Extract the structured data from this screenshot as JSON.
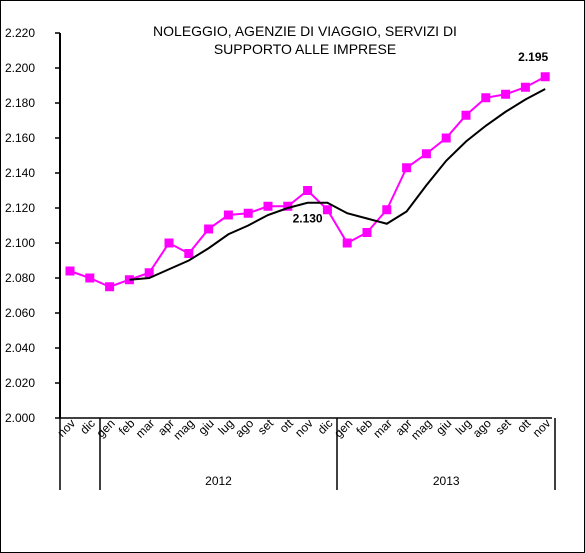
{
  "chart_data": {
    "type": "line",
    "title": [
      "NOLEGGIO, AGENZIE DI VIAGGIO, SERVIZI DI",
      "SUPPORTO ALLE IMPRESE"
    ],
    "categories": [
      "nov",
      "dic",
      "gen",
      "feb",
      "mar",
      "apr",
      "mag",
      "giu",
      "lug",
      "ago",
      "set",
      "ott",
      "nov",
      "dic",
      "gen",
      "feb",
      "mar",
      "apr",
      "mag",
      "giu",
      "lug",
      "ago",
      "set",
      "ott",
      "nov"
    ],
    "x_groups": [
      {
        "label": "2012",
        "span": [
          2,
          13
        ]
      },
      {
        "label": "2013",
        "span": [
          14,
          24
        ]
      }
    ],
    "series": [
      {
        "color": "#ff00ff",
        "marker": "square",
        "values": [
          2084,
          2080,
          2075,
          2079,
          2083,
          2100,
          2094,
          2108,
          2116,
          2117,
          2121,
          2121,
          2130,
          2119,
          2100,
          2106,
          2119,
          2143,
          2151,
          2160,
          2173,
          2183,
          2185,
          2189,
          2195
        ],
        "value_labels": [
          null,
          null,
          null,
          null,
          null,
          null,
          null,
          null,
          null,
          null,
          null,
          null,
          "2.130",
          null,
          null,
          null,
          null,
          null,
          null,
          null,
          null,
          null,
          null,
          null,
          "2.195"
        ]
      },
      {
        "color": "#000000",
        "values": [
          null,
          null,
          null,
          2079,
          2080,
          2085,
          2090,
          2097,
          2105,
          2110,
          2116,
          2120,
          2123,
          2123,
          2117,
          2114,
          2111,
          2118,
          2133,
          2147,
          2158,
          2167,
          2175,
          2182,
          2188
        ]
      }
    ],
    "ylim": [
      2000,
      2220
    ],
    "yticks": [
      {
        "value": 2000,
        "label": "2.000"
      },
      {
        "value": 2020,
        "label": "2.020"
      },
      {
        "value": 2040,
        "label": "2.040"
      },
      {
        "value": 2060,
        "label": "2.060"
      },
      {
        "value": 2080,
        "label": "2.080"
      },
      {
        "value": 2100,
        "label": "2.100"
      },
      {
        "value": 2120,
        "label": "2.120"
      },
      {
        "value": 2140,
        "label": "2.140"
      },
      {
        "value": 2160,
        "label": "2.160"
      },
      {
        "value": 2180,
        "label": "2.180"
      },
      {
        "value": 2200,
        "label": "2.200"
      },
      {
        "value": 2220,
        "label": "2.220"
      }
    ],
    "grid": false
  }
}
